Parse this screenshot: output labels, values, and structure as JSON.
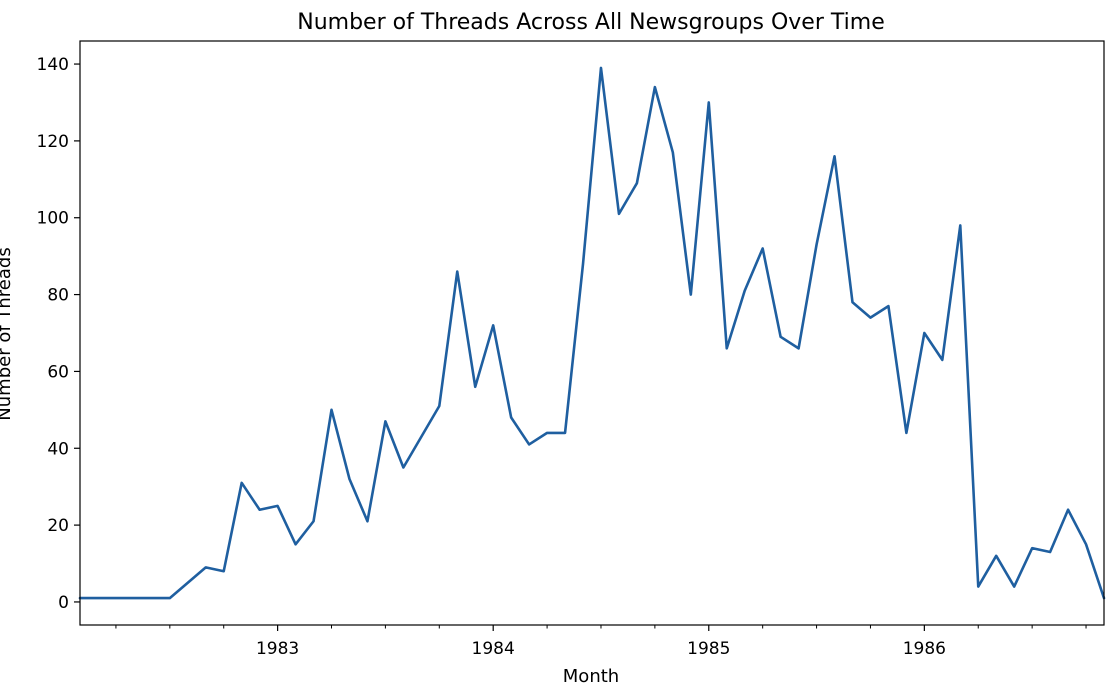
{
  "chart_data": {
    "type": "line",
    "title": "Number of Threads Across All Newsgroups Over Time",
    "xlabel": "Month",
    "ylabel": "Number of Threads",
    "xlim": [
      "1982-02",
      "1986-11"
    ],
    "ylim": [
      -6,
      146
    ],
    "yticks": [
      0,
      20,
      40,
      60,
      80,
      100,
      120,
      140
    ],
    "xticks": [
      "1983",
      "1984",
      "1985",
      "1986"
    ],
    "grid": false,
    "legend": "none",
    "line_color": "#1f5fa0",
    "series": [
      {
        "x": [
          "1982-02",
          "1982-03",
          "1982-04",
          "1982-05",
          "1982-06",
          "1982-07",
          "1982-08",
          "1982-09",
          "1982-10",
          "1982-11",
          "1982-12",
          "1983-01",
          "1983-02",
          "1983-03",
          "1983-04",
          "1983-05",
          "1983-06",
          "1983-07",
          "1983-08",
          "1983-09",
          "1983-10",
          "1983-11",
          "1983-12",
          "1984-01",
          "1984-02",
          "1984-03",
          "1984-04",
          "1984-05",
          "1984-06",
          "1984-07",
          "1984-08",
          "1984-09",
          "1984-10",
          "1984-11",
          "1984-12",
          "1985-01",
          "1985-02",
          "1985-03",
          "1985-04",
          "1985-05",
          "1985-06",
          "1985-07",
          "1985-08",
          "1985-09",
          "1985-10",
          "1985-11",
          "1985-12",
          "1986-01",
          "1986-02",
          "1986-03",
          "1986-04",
          "1986-05",
          "1986-06",
          "1986-07",
          "1986-08",
          "1986-09",
          "1986-10",
          "1986-11"
        ],
        "values": [
          1,
          1,
          1,
          1,
          1,
          1,
          5,
          9,
          8,
          31,
          24,
          25,
          15,
          21,
          50,
          32,
          21,
          47,
          35,
          43,
          51,
          86,
          56,
          72,
          48,
          41,
          44,
          44,
          88,
          139,
          101,
          109,
          134,
          117,
          80,
          130,
          66,
          81,
          92,
          69,
          66,
          93,
          116,
          78,
          74,
          77,
          44,
          70,
          63,
          98,
          4,
          12,
          4,
          14,
          13,
          24,
          15,
          1
        ]
      }
    ]
  }
}
